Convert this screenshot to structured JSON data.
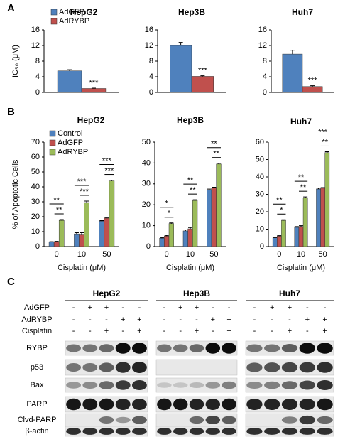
{
  "panel_labels": [
    "A",
    "B",
    "C"
  ],
  "chart_data": [
    {
      "type": "bar",
      "title": "HepG2",
      "y_label": "IC₅₀ (μM)",
      "categories": [
        null
      ],
      "legend": "upper left",
      "series": [
        {
          "name": "AdGFP",
          "color": "#4f81bd",
          "values": [
            5.5
          ],
          "errors": [
            0.3
          ]
        },
        {
          "name": "AdRYBP",
          "color": "#c0504d",
          "values": [
            1.0
          ],
          "errors": [
            0.1
          ],
          "significance": "***"
        }
      ],
      "ylim": [
        0,
        16
      ],
      "yticks": [
        0,
        4,
        8,
        12,
        16
      ]
    },
    {
      "type": "bar",
      "title": "Hep3B",
      "categories": [
        null
      ],
      "series": [
        {
          "name": "AdGFP",
          "color": "#4f81bd",
          "values": [
            12.0
          ],
          "errors": [
            0.8
          ]
        },
        {
          "name": "AdRYBP",
          "color": "#c0504d",
          "values": [
            4.1
          ],
          "errors": [
            0.15
          ],
          "significance": "***"
        }
      ],
      "ylim": [
        0,
        16
      ],
      "yticks": [
        0,
        4,
        8,
        12,
        16
      ]
    },
    {
      "type": "bar",
      "title": "Huh7",
      "categories": [
        null
      ],
      "series": [
        {
          "name": "AdGFP",
          "color": "#4f81bd",
          "values": [
            9.8
          ],
          "errors": [
            1.0
          ]
        },
        {
          "name": "AdRYBP",
          "color": "#c0504d",
          "values": [
            1.5
          ],
          "errors": [
            0.2
          ],
          "significance": "***"
        }
      ],
      "ylim": [
        0,
        16
      ],
      "yticks": [
        0,
        4,
        8,
        12,
        16
      ]
    },
    {
      "type": "bar",
      "title": "HepG2",
      "y_label": "% of Apoptotic Cells",
      "x_label": "Cisplatin (μM)",
      "legend": "upper left",
      "categories": [
        "0",
        "10",
        "50"
      ],
      "series": [
        {
          "name": "Control",
          "color": "#4f81bd",
          "values": [
            3,
            8.5,
            17
          ],
          "errors": [
            0.3,
            0.8,
            0.4
          ]
        },
        {
          "name": "AdGFP",
          "color": "#c0504d",
          "values": [
            3.2,
            8.3,
            19
          ],
          "errors": [
            0.3,
            1.0,
            0.4
          ]
        },
        {
          "name": "AdRYBP",
          "color": "#9bbb59",
          "values": [
            17.5,
            29.5,
            44
          ],
          "errors": [
            0.6,
            1.0,
            0.5
          ]
        }
      ],
      "significance": [
        [
          "**",
          "**"
        ],
        [
          "***",
          "***"
        ],
        [
          "***",
          "***"
        ]
      ],
      "ylim": [
        0,
        70
      ],
      "yticks": [
        0,
        10,
        20,
        30,
        40,
        50,
        60,
        70
      ]
    },
    {
      "type": "bar",
      "title": "Hep3B",
      "x_label": "Cisplatin (μM)",
      "categories": [
        "0",
        "10",
        "50"
      ],
      "series": [
        {
          "name": "Control",
          "color": "#4f81bd",
          "values": [
            4,
            7.5,
            27
          ],
          "errors": [
            0.3,
            0.5,
            0.5
          ]
        },
        {
          "name": "AdGFP",
          "color": "#c0504d",
          "values": [
            5,
            8.5,
            28
          ],
          "errors": [
            0.3,
            0.6,
            0.4
          ]
        },
        {
          "name": "AdRYBP",
          "color": "#9bbb59",
          "values": [
            11,
            22,
            39.5
          ],
          "errors": [
            0.3,
            0.4,
            0.4
          ]
        }
      ],
      "significance": [
        [
          "*",
          "*"
        ],
        [
          "**",
          "**"
        ],
        [
          "**",
          "**"
        ]
      ],
      "ylim": [
        0,
        50
      ],
      "yticks": [
        0,
        10,
        20,
        30,
        40,
        50
      ]
    },
    {
      "type": "bar",
      "title": "Huh7",
      "x_label": "Cisplatin (μM)",
      "categories": [
        "0",
        "10",
        "50"
      ],
      "series": [
        {
          "name": "Control",
          "color": "#4f81bd",
          "values": [
            5,
            11,
            33
          ],
          "errors": [
            0.3,
            0.5,
            0.5
          ]
        },
        {
          "name": "AdGFP",
          "color": "#c0504d",
          "values": [
            6,
            11.5,
            33.5
          ],
          "errors": [
            0.3,
            0.5,
            0.4
          ]
        },
        {
          "name": "AdRYBP",
          "color": "#9bbb59",
          "values": [
            15,
            28,
            54
          ],
          "errors": [
            0.4,
            0.5,
            0.5
          ]
        }
      ],
      "significance": [
        [
          "**",
          "*"
        ],
        [
          "**",
          "**"
        ],
        [
          "***",
          "**"
        ]
      ],
      "ylim": [
        0,
        60
      ],
      "yticks": [
        0,
        10,
        20,
        30,
        40,
        50,
        60
      ]
    }
  ],
  "blot": {
    "cell_lines": [
      "HepG2",
      "Hep3B",
      "Huh7"
    ],
    "conditions": [
      {
        "label": "AdGFP",
        "signs": [
          "-",
          "+",
          "+",
          "-",
          "-"
        ]
      },
      {
        "label": "AdRYBP",
        "signs": [
          "-",
          "-",
          "-",
          "+",
          "+"
        ]
      },
      {
        "label": "Cisplatin",
        "signs": [
          "-",
          "-",
          "+",
          "-",
          "+"
        ]
      }
    ],
    "proteins": [
      "RYBP",
      "p53",
      "Bax",
      "PARP",
      "Clvd-PARP",
      "β-actin"
    ]
  }
}
